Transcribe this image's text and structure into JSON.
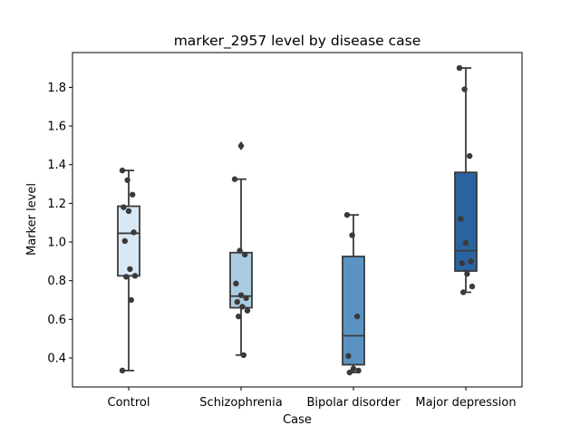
{
  "chart_data": {
    "type": "box",
    "title": "marker_2957 level by disease case",
    "xlabel": "Case",
    "ylabel": "Marker level",
    "ylim": [
      0.25,
      1.98
    ],
    "yticks": [
      "0.4",
      "0.6",
      "0.8",
      "1.0",
      "1.2",
      "1.4",
      "1.6",
      "1.8"
    ],
    "grid": false,
    "legend": "none",
    "categories": [
      "Control",
      "Schizophrenia",
      "Bipolar disorder",
      "Major depression"
    ],
    "colors": [
      "#d9e8f5",
      "#a9cce3",
      "#5a93c2",
      "#2a64a0"
    ],
    "boxes": [
      {
        "category": "Control",
        "whisker_low": 0.335,
        "q1": 0.825,
        "median": 1.045,
        "q3": 1.185,
        "whisker_high": 1.37,
        "outliers": []
      },
      {
        "category": "Schizophrenia",
        "whisker_low": 0.415,
        "q1": 0.66,
        "median": 0.72,
        "q3": 0.945,
        "whisker_high": 1.325,
        "outliers": [
          1.5,
          1.495
        ]
      },
      {
        "category": "Bipolar disorder",
        "whisker_low": 0.325,
        "q1": 0.365,
        "median": 0.515,
        "q3": 0.925,
        "whisker_high": 1.14,
        "outliers": []
      },
      {
        "category": "Major depression",
        "whisker_low": 0.74,
        "q1": 0.85,
        "median": 0.955,
        "q3": 1.36,
        "whisker_high": 1.9,
        "outliers": []
      }
    ],
    "points": [
      {
        "category": "Control",
        "values": [
          1.37,
          1.32,
          1.245,
          1.18,
          1.16,
          1.05,
          1.005,
          0.86,
          0.825,
          0.82,
          0.7,
          0.335
        ]
      },
      {
        "category": "Schizophrenia",
        "values": [
          1.325,
          0.955,
          0.935,
          0.785,
          0.725,
          0.71,
          0.69,
          0.665,
          0.645,
          0.615,
          0.415
        ]
      },
      {
        "category": "Bipolar disorder",
        "values": [
          1.14,
          1.035,
          0.615,
          0.41,
          0.345,
          0.335,
          0.325
        ]
      },
      {
        "category": "Major depression",
        "values": [
          1.9,
          1.79,
          1.445,
          1.12,
          0.995,
          0.9,
          0.89,
          0.835,
          0.77,
          0.74
        ]
      }
    ]
  }
}
